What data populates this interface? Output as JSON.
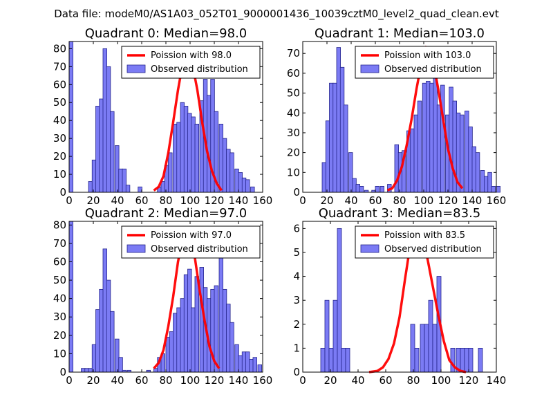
{
  "chart_data": {
    "type": "bar",
    "suptitle": "Data file: modeM0/AS1A03_052T01_9000001436_10039cztM0_level2_quad_clean.evt",
    "colors": {
      "bars": "#7b7bf4",
      "bar_edge": "#23238a",
      "curve": "#ff0000"
    },
    "panels": [
      {
        "title": "Quadrant 0: Median=98.0",
        "median": 98.0,
        "legend": {
          "position": "top-right",
          "line_label": "Poission with 98.0",
          "bar_label": "Observed distribution"
        },
        "xlim": [
          0,
          160
        ],
        "ylim": [
          0,
          84
        ],
        "bin_width": 3.2,
        "xticks": [
          0,
          20,
          40,
          60,
          80,
          100,
          120,
          140,
          160
        ],
        "yticks": [
          0,
          10,
          20,
          30,
          40,
          50,
          60,
          70,
          80
        ],
        "bins": [
          [
            0,
            84
          ],
          [
            16,
            6
          ],
          [
            19,
            18
          ],
          [
            22,
            48
          ],
          [
            25,
            52
          ],
          [
            28,
            80
          ],
          [
            31,
            70
          ],
          [
            34,
            45
          ],
          [
            38,
            26
          ],
          [
            41,
            13
          ],
          [
            44,
            13
          ],
          [
            47,
            4
          ],
          [
            57,
            3
          ],
          [
            73,
            3
          ],
          [
            76,
            6
          ],
          [
            79,
            15
          ],
          [
            82,
            22
          ],
          [
            86,
            38
          ],
          [
            89,
            39
          ],
          [
            92,
            50
          ],
          [
            95,
            48
          ],
          [
            98,
            44
          ],
          [
            101,
            42
          ],
          [
            104,
            38
          ],
          [
            108,
            51
          ],
          [
            111,
            63
          ],
          [
            114,
            54
          ],
          [
            117,
            63
          ],
          [
            120,
            45
          ],
          [
            124,
            38
          ],
          [
            127,
            30
          ],
          [
            130,
            24
          ],
          [
            133,
            22
          ],
          [
            137,
            13
          ],
          [
            140,
            11
          ],
          [
            143,
            8
          ],
          [
            146,
            7
          ],
          [
            150,
            3
          ]
        ],
        "curve_x": [
          70,
          74,
          78,
          82,
          86,
          90,
          94,
          96,
          98,
          100,
          102,
          106,
          110,
          114,
          118,
          122,
          126
        ],
        "curve_y": [
          1,
          3,
          9,
          22,
          39,
          57,
          72,
          77,
          78,
          75,
          71,
          57,
          39,
          23,
          12,
          5,
          1
        ]
      },
      {
        "title": "Quadrant 1: Median=103.0",
        "median": 103.0,
        "legend": {
          "position": "top-right",
          "line_label": "Poission with 103.0",
          "bar_label": "Observed distribution"
        },
        "xlim": [
          0,
          160
        ],
        "ylim": [
          0,
          76
        ],
        "bin_width": 3.2,
        "xticks": [
          0,
          20,
          40,
          60,
          80,
          100,
          120,
          140,
          160
        ],
        "yticks": [
          0,
          10,
          20,
          30,
          40,
          50,
          60,
          70
        ],
        "bins": [
          [
            16,
            15
          ],
          [
            19,
            36
          ],
          [
            22,
            55
          ],
          [
            25,
            55
          ],
          [
            28,
            73
          ],
          [
            31,
            63
          ],
          [
            34,
            44
          ],
          [
            38,
            20
          ],
          [
            41,
            7
          ],
          [
            44,
            4
          ],
          [
            47,
            3
          ],
          [
            51,
            1
          ],
          [
            57,
            1
          ],
          [
            60,
            3
          ],
          [
            64,
            3
          ],
          [
            70,
            4
          ],
          [
            76,
            24
          ],
          [
            79,
            20
          ],
          [
            82,
            21
          ],
          [
            86,
            31
          ],
          [
            89,
            32
          ],
          [
            92,
            39
          ],
          [
            95,
            46
          ],
          [
            99,
            55
          ],
          [
            102,
            56
          ],
          [
            105,
            55
          ],
          [
            108,
            65
          ],
          [
            111,
            44
          ],
          [
            114,
            54
          ],
          [
            118,
            39
          ],
          [
            121,
            53
          ],
          [
            124,
            46
          ],
          [
            127,
            40
          ],
          [
            130,
            39
          ],
          [
            134,
            41
          ],
          [
            137,
            33
          ],
          [
            140,
            23
          ],
          [
            143,
            20
          ],
          [
            147,
            11
          ],
          [
            150,
            8
          ],
          [
            153,
            10
          ],
          [
            156,
            3
          ],
          [
            160,
            3
          ]
        ],
        "curve_x": [
          70,
          74,
          78,
          82,
          86,
          90,
          94,
          98,
          100,
          102,
          104,
          108,
          112,
          116,
          120,
          124,
          128,
          132
        ],
        "curve_y": [
          1,
          2,
          6,
          13,
          24,
          37,
          52,
          65,
          70,
          73,
          72,
          65,
          52,
          37,
          22,
          12,
          5,
          2
        ]
      },
      {
        "title": "Quadrant 2: Median=97.0",
        "median": 97.0,
        "legend": {
          "position": "top-right",
          "line_label": "Poission with 97.0",
          "bar_label": "Observed distribution"
        },
        "xlim": [
          0,
          160
        ],
        "ylim": [
          0,
          82
        ],
        "bin_width": 3.2,
        "xticks": [
          0,
          20,
          40,
          60,
          80,
          100,
          120,
          140,
          160
        ],
        "yticks": [
          0,
          10,
          20,
          30,
          40,
          50,
          60,
          70,
          80
        ],
        "bins": [
          [
            0,
            82
          ],
          [
            10,
            2
          ],
          [
            13,
            2
          ],
          [
            16,
            2
          ],
          [
            19,
            15
          ],
          [
            22,
            34
          ],
          [
            25,
            45
          ],
          [
            28,
            67
          ],
          [
            31,
            50
          ],
          [
            34,
            33
          ],
          [
            38,
            18
          ],
          [
            41,
            8
          ],
          [
            44,
            1
          ],
          [
            48,
            1
          ],
          [
            64,
            1
          ],
          [
            70,
            2
          ],
          [
            73,
            8
          ],
          [
            76,
            10
          ],
          [
            80,
            19
          ],
          [
            83,
            22
          ],
          [
            86,
            32
          ],
          [
            89,
            35
          ],
          [
            92,
            40
          ],
          [
            95,
            53
          ],
          [
            98,
            56
          ],
          [
            101,
            35
          ],
          [
            104,
            52
          ],
          [
            108,
            57
          ],
          [
            111,
            46
          ],
          [
            114,
            40
          ],
          [
            117,
            45
          ],
          [
            120,
            47
          ],
          [
            124,
            63
          ],
          [
            127,
            45
          ],
          [
            130,
            37
          ],
          [
            133,
            27
          ],
          [
            137,
            15
          ],
          [
            140,
            9
          ],
          [
            143,
            11
          ],
          [
            146,
            11
          ],
          [
            149,
            7
          ],
          [
            152,
            8
          ],
          [
            156,
            4
          ]
        ],
        "curve_x": [
          70,
          74,
          78,
          82,
          86,
          90,
          94,
          96,
          98,
          100,
          104,
          108,
          112,
          116,
          120,
          124
        ],
        "curve_y": [
          2,
          5,
          12,
          25,
          41,
          60,
          73,
          78,
          77,
          74,
          62,
          44,
          28,
          14,
          6,
          2
        ]
      },
      {
        "title": "Quadrant 3: Median=83.5",
        "median": 83.5,
        "legend": {
          "position": "top-right",
          "line_label": "Poission with 83.5",
          "bar_label": "Observed distribution"
        },
        "xlim": [
          0,
          140
        ],
        "ylim": [
          0,
          6.3
        ],
        "bin_width": 3.0,
        "xticks": [
          0,
          20,
          40,
          60,
          80,
          100,
          120,
          140
        ],
        "yticks": [
          0,
          1,
          2,
          3,
          4,
          5,
          6
        ],
        "bins": [
          [
            13,
            1
          ],
          [
            16,
            3
          ],
          [
            19,
            1
          ],
          [
            22,
            3
          ],
          [
            25,
            6
          ],
          [
            28,
            1
          ],
          [
            31,
            1
          ],
          [
            78,
            2
          ],
          [
            81,
            1
          ],
          [
            85,
            2
          ],
          [
            88,
            2
          ],
          [
            91,
            3
          ],
          [
            94,
            2
          ],
          [
            97,
            4
          ],
          [
            107,
            1
          ],
          [
            111,
            1
          ],
          [
            114,
            1
          ],
          [
            117,
            1
          ],
          [
            120,
            1
          ],
          [
            127,
            1
          ]
        ],
        "curve_x": [
          48,
          54,
          58,
          62,
          66,
          70,
          74,
          78,
          82,
          86,
          90,
          94,
          98,
          102,
          106,
          110,
          114,
          118
        ],
        "curve_y": [
          0,
          0.05,
          0.2,
          0.55,
          1.2,
          2.3,
          3.9,
          5.4,
          6.0,
          5.7,
          4.8,
          3.6,
          2.4,
          1.3,
          0.5,
          0.2,
          0.05,
          0
        ]
      }
    ]
  }
}
